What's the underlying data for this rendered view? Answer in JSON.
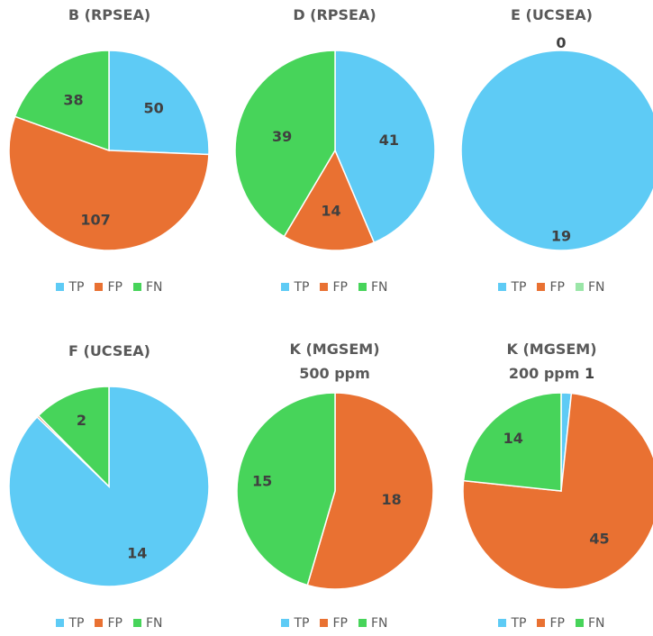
{
  "colors": {
    "TP": "#5ecbf5",
    "FP": "#e97132",
    "FN": "#47d45a",
    "FN_light": "#9be6a8"
  },
  "chart_data": [
    {
      "type": "pie",
      "title": "B (RPSEA)",
      "slices": [
        {
          "name": "TP",
          "value": 50,
          "label": "50"
        },
        {
          "name": "FP",
          "value": 107,
          "label": "107"
        },
        {
          "name": "FN",
          "value": 38,
          "label": "38"
        }
      ],
      "legend": [
        "TP",
        "FP",
        "FN"
      ],
      "legend_position": "bottom"
    },
    {
      "type": "pie",
      "title": "D (RPSEA)",
      "slices": [
        {
          "name": "TP",
          "value": 41,
          "label": "41"
        },
        {
          "name": "FP",
          "value": 14,
          "label": "14"
        },
        {
          "name": "FN",
          "value": 39,
          "label": "39"
        }
      ],
      "legend": [
        "TP",
        "FP",
        "FN"
      ],
      "legend_position": "bottom"
    },
    {
      "type": "pie",
      "title": "E (UCSEA)",
      "slices": [
        {
          "name": "TP",
          "value": 19,
          "label": "19"
        },
        {
          "name": "FP",
          "value": 0,
          "label": "0"
        },
        {
          "name": "FN",
          "value": 0,
          "label": ""
        }
      ],
      "legend": [
        "TP",
        "FP",
        "FN"
      ],
      "legend_position": "bottom"
    },
    {
      "type": "pie",
      "title": "F (UCSEA)",
      "slices": [
        {
          "name": "TP",
          "value": 14,
          "label": "14"
        },
        {
          "name": "FP",
          "value": 0.05,
          "label": ""
        },
        {
          "name": "FN",
          "value": 2,
          "label": "2"
        }
      ],
      "legend": [
        "TP",
        "FP",
        "FN"
      ],
      "legend_position": "bottom"
    },
    {
      "type": "pie",
      "title": "K (MGSEM)",
      "subtitle": "500 ppm",
      "slices": [
        {
          "name": "TP",
          "value": 0,
          "label": ""
        },
        {
          "name": "FP",
          "value": 18,
          "label": "18"
        },
        {
          "name": "FN",
          "value": 15,
          "label": "15"
        }
      ],
      "legend": [
        "TP",
        "FP",
        "FN"
      ],
      "legend_position": "bottom"
    },
    {
      "type": "pie",
      "title": "K (MGSEM)",
      "subtitle": "200 ppm",
      "subtitle_extra": "1",
      "slices": [
        {
          "name": "TP",
          "value": 1,
          "label": "1"
        },
        {
          "name": "FP",
          "value": 45,
          "label": "45"
        },
        {
          "name": "FN",
          "value": 14,
          "label": "14"
        }
      ],
      "legend": [
        "TP",
        "FP",
        "FN"
      ],
      "legend_position": "bottom"
    }
  ]
}
